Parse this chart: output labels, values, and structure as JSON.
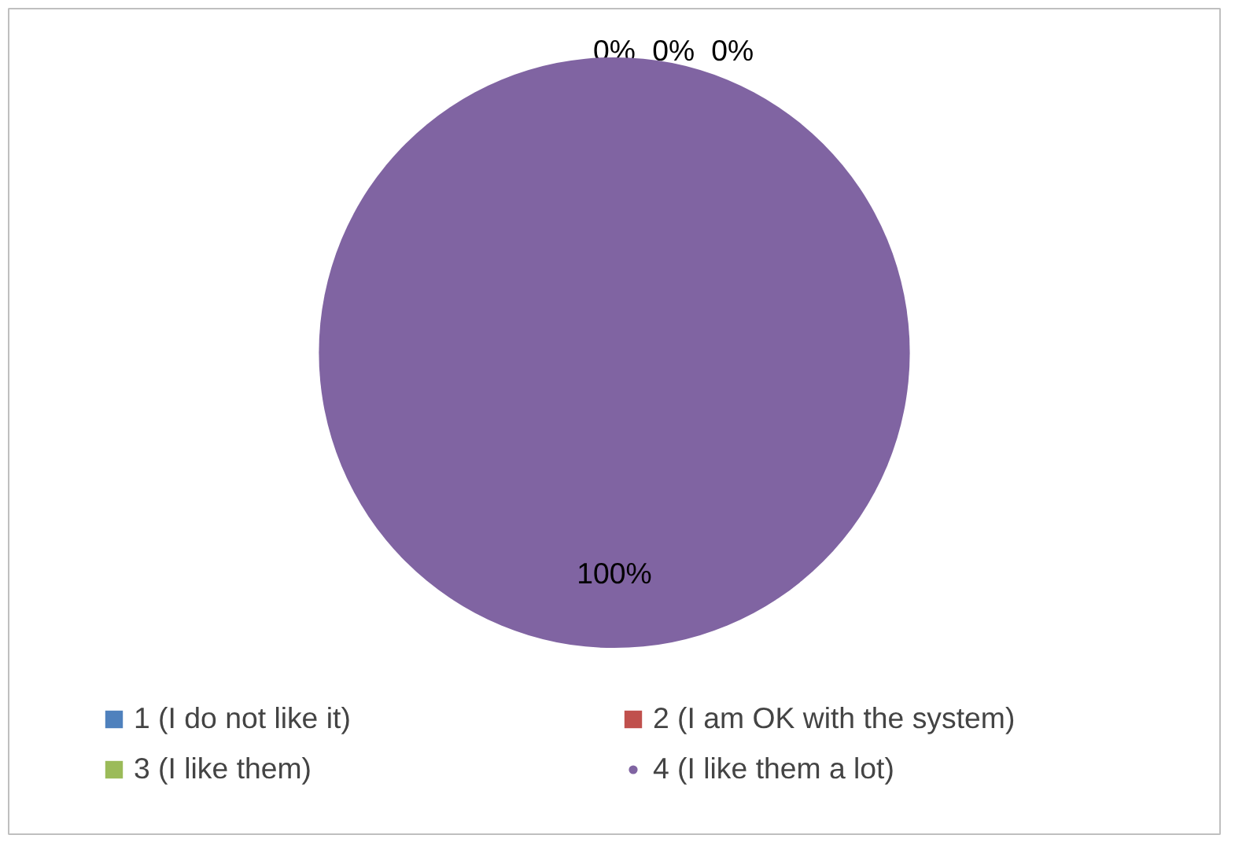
{
  "chart_data": {
    "type": "pie",
    "categories": [
      "1 (I do not like it)",
      "2 (I am OK with the system)",
      "3 (I like them)",
      "4 (I like them a lot)"
    ],
    "values": [
      0,
      0,
      0,
      100
    ],
    "colors": [
      "#4f81bd",
      "#c0504d",
      "#9bbb59",
      "#8064a2"
    ],
    "value_labels": [
      "0%",
      "0%",
      "0%",
      "100%"
    ],
    "legend": "bottom"
  }
}
